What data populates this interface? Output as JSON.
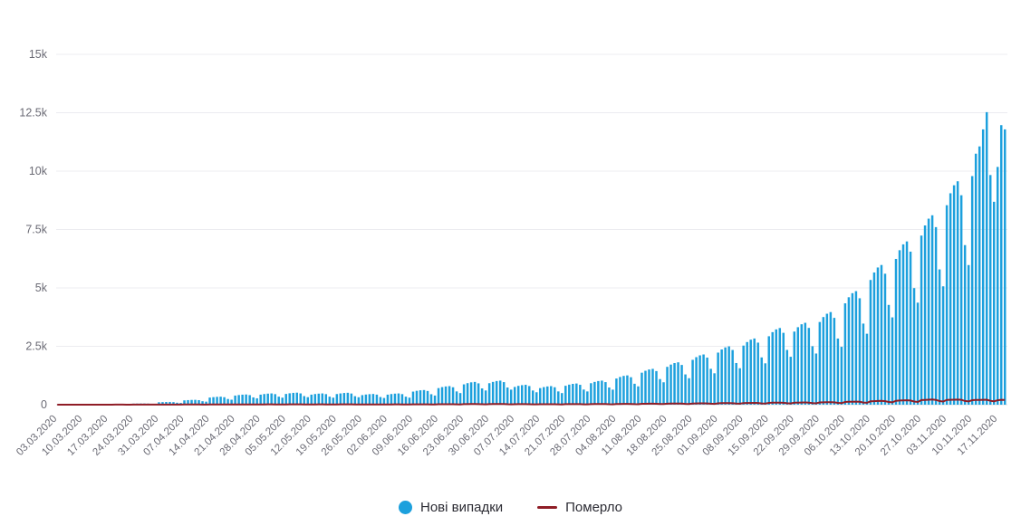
{
  "page": {
    "background": "#ffffff"
  },
  "legend": {
    "items": [
      {
        "label": "Нові випадки",
        "marker": "circle",
        "color": "#1ca0dd"
      },
      {
        "label": "Померло",
        "marker": "line",
        "color": "#8f1d26"
      }
    ]
  },
  "chart_data": {
    "type": "bar",
    "title": "",
    "xlabel": "",
    "ylabel": "",
    "ylim": [
      0,
      15000
    ],
    "grid": true,
    "legend_position": "bottom",
    "y_tick_labels": [
      "0",
      "2.5k",
      "5k",
      "7.5k",
      "10k",
      "12.5k",
      "15k"
    ],
    "y_tick_values": [
      0,
      2500,
      5000,
      7500,
      10000,
      12500,
      15000
    ],
    "tick_every_n_days": 7,
    "x_tick_labels": [
      "03.03.2020",
      "10.03.2020",
      "17.03.2020",
      "24.03.2020",
      "31.03.2020",
      "07.04.2020",
      "14.04.2020",
      "21.04.2020",
      "28.04.2020",
      "05.05.2020",
      "12.05.2020",
      "19.05.2020",
      "26.05.2020",
      "02.06.2020",
      "09.06.2020",
      "16.06.2020",
      "23.06.2020",
      "30.06.2020",
      "07.07.2020",
      "14.07.2020",
      "21.07.2020",
      "28.07.2020",
      "04.08.2020",
      "11.08.2020",
      "18.08.2020",
      "25.08.2020",
      "01.09.2020",
      "08.09.2020",
      "15.09.2020",
      "22.09.2020",
      "29.09.2020",
      "06.10.2020",
      "13.10.2020",
      "20.10.2020",
      "27.10.2020",
      "03.11.2020",
      "10.11.2020",
      "17.11.2020"
    ],
    "series": [
      {
        "name": "Нові випадки",
        "type": "bar",
        "color": "#1ca0dd",
        "values": [
          1,
          0,
          1,
          1,
          2,
          1,
          1,
          3,
          3,
          3,
          3,
          3,
          2,
          2,
          12,
          13,
          13,
          13,
          13,
          10,
          8,
          45,
          48,
          50,
          50,
          47,
          36,
          32,
          105,
          111,
          116,
          118,
          110,
          84,
          74,
          185,
          196,
          204,
          207,
          194,
          148,
          130,
          305,
          323,
          336,
          342,
          320,
          244,
          214,
          390,
          413,
          429,
          437,
          410,
          312,
          273,
          430,
          456,
          473,
          482,
          452,
          344,
          301,
          460,
          488,
          506,
          515,
          483,
          368,
          322,
          430,
          456,
          473,
          482,
          452,
          344,
          301,
          455,
          482,
          501,
          510,
          478,
          364,
          319,
          410,
          435,
          451,
          459,
          431,
          328,
          287,
          430,
          456,
          473,
          482,
          452,
          344,
          301,
          560,
          594,
          616,
          627,
          588,
          448,
          392,
          710,
          753,
          781,
          795,
          746,
          568,
          497,
          870,
          922,
          957,
          974,
          914,
          696,
          609,
          920,
          975,
          1012,
          1030,
          966,
          736,
          644,
          760,
          806,
          836,
          851,
          798,
          608,
          532,
          710,
          753,
          781,
          795,
          746,
          568,
          497,
          810,
          859,
          891,
          907,
          851,
          648,
          567,
          920,
          975,
          1012,
          1030,
          966,
          736,
          644,
          1120,
          1187,
          1232,
          1254,
          1176,
          896,
          784,
          1370,
          1452,
          1507,
          1534,
          1439,
          1096,
          959,
          1620,
          1717,
          1782,
          1814,
          1701,
          1296,
          1134,
          1920,
          2035,
          2112,
          2150,
          2016,
          1536,
          1344,
          2230,
          2364,
          2453,
          2498,
          2342,
          1784,
          1561,
          2530,
          2682,
          2783,
          2834,
          2657,
          2024,
          1771,
          2930,
          3106,
          3223,
          3282,
          3077,
          2344,
          2051,
          3130,
          3318,
          3443,
          3506,
          3287,
          2504,
          2191,
          3540,
          3752,
          3894,
          3965,
          3717,
          2832,
          2478,
          4340,
          4600,
          4774,
          4861,
          4557,
          3472,
          3038,
          5340,
          5660,
          5874,
          5981,
          5607,
          4272,
          3738,
          6240,
          6614,
          6864,
          6989,
          6552,
          4992,
          4368,
          7240,
          7674,
          7964,
          8109,
          7602,
          5792,
          5068,
          8540,
          9052,
          9394,
          9565,
          8967,
          6832,
          5978,
          9787,
          10746,
          11057,
          11787,
          12524,
          9832,
          8687,
          10179,
          11968,
          11787
        ]
      },
      {
        "name": "Померло",
        "type": "line",
        "color": "#8f1d26",
        "values": [
          0,
          0,
          0,
          0,
          1,
          0,
          0,
          0,
          1,
          0,
          1,
          1,
          0,
          1,
          1,
          1,
          2,
          2,
          2,
          1,
          1,
          2,
          3,
          3,
          3,
          3,
          2,
          2,
          4,
          5,
          5,
          5,
          5,
          4,
          3,
          6,
          7,
          8,
          8,
          7,
          5,
          5,
          9,
          10,
          11,
          11,
          10,
          8,
          7,
          11,
          12,
          13,
          13,
          12,
          9,
          8,
          12,
          13,
          14,
          14,
          13,
          10,
          9,
          13,
          14,
          15,
          15,
          14,
          10,
          9,
          12,
          13,
          14,
          14,
          13,
          10,
          9,
          13,
          14,
          15,
          15,
          14,
          10,
          9,
          11,
          12,
          13,
          13,
          12,
          9,
          8,
          12,
          13,
          14,
          14,
          13,
          10,
          9,
          15,
          16,
          17,
          17,
          16,
          12,
          11,
          19,
          20,
          21,
          21,
          20,
          15,
          13,
          23,
          25,
          26,
          26,
          24,
          19,
          16,
          25,
          26,
          27,
          28,
          26,
          20,
          17,
          20,
          22,
          23,
          23,
          21,
          16,
          14,
          19,
          20,
          21,
          21,
          20,
          15,
          13,
          22,
          23,
          24,
          25,
          23,
          17,
          15,
          25,
          26,
          27,
          28,
          26,
          20,
          17,
          30,
          32,
          33,
          34,
          32,
          24,
          21,
          37,
          39,
          41,
          41,
          39,
          30,
          26,
          44,
          46,
          48,
          49,
          46,
          35,
          31,
          52,
          55,
          57,
          58,
          54,
          41,
          36,
          60,
          64,
          66,
          67,
          63,
          48,
          42,
          68,
          72,
          75,
          77,
          72,
          55,
          48,
          79,
          84,
          87,
          89,
          83,
          63,
          55,
          85,
          90,
          93,
          95,
          89,
          68,
          59,
          96,
          101,
          105,
          107,
          100,
          76,
          67,
          117,
          124,
          129,
          131,
          123,
          94,
          82,
          144,
          153,
          159,
          161,
          151,
          115,
          101,
          168,
          179,
          185,
          189,
          177,
          135,
          118,
          196,
          207,
          215,
          219,
          205,
          156,
          137,
          205,
          210,
          215,
          218,
          210,
          160,
          140,
          195,
          200,
          205,
          210,
          215,
          165,
          145,
          190,
          210,
          205
        ]
      }
    ]
  },
  "style": {
    "grid_color": "#ececf0",
    "axis_text_color": "#6a6a74",
    "baseline_color": "#e0e0e5"
  }
}
